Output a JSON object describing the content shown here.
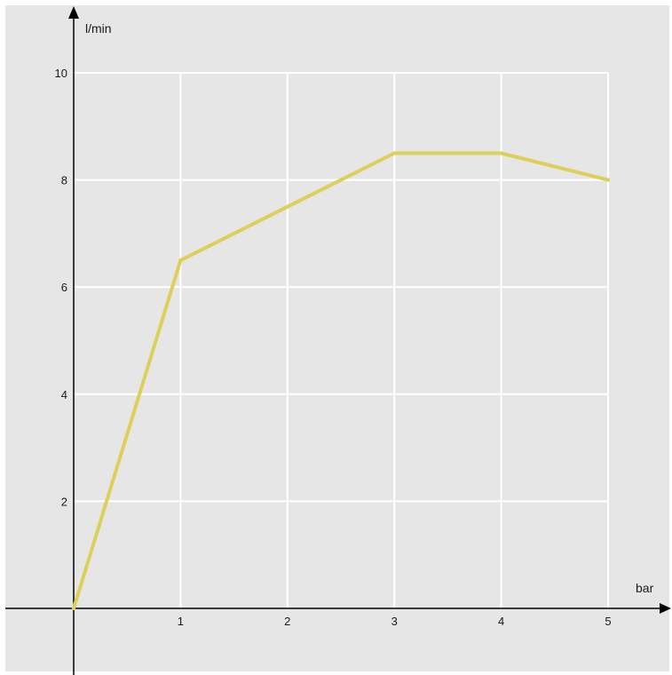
{
  "chart_data": {
    "type": "line",
    "title": "",
    "xlabel": "bar",
    "ylabel": "l/min",
    "xlim": [
      0,
      5
    ],
    "ylim": [
      0,
      10
    ],
    "x_ticks": [
      {
        "value": 1,
        "label": "1"
      },
      {
        "value": 2,
        "label": "2"
      },
      {
        "value": 3,
        "label": "3"
      },
      {
        "value": 4,
        "label": "4"
      },
      {
        "value": 5,
        "label": "5"
      }
    ],
    "y_ticks": [
      {
        "value": 2,
        "label": "2"
      },
      {
        "value": 4,
        "label": "4"
      },
      {
        "value": 6,
        "label": "6"
      },
      {
        "value": 8,
        "label": "8"
      },
      {
        "value": 10,
        "label": "10"
      }
    ],
    "grid": true,
    "series": [
      {
        "color": "#ddd05a",
        "x": [
          0,
          1,
          2,
          3,
          4,
          5
        ],
        "y": [
          0,
          6.5,
          7.5,
          8.5,
          8.5,
          8.0
        ]
      }
    ],
    "colors": {
      "background": "#e6e6e6",
      "grid": "#ffffff",
      "axis": "#000000",
      "text": "#1a1a1a"
    }
  }
}
